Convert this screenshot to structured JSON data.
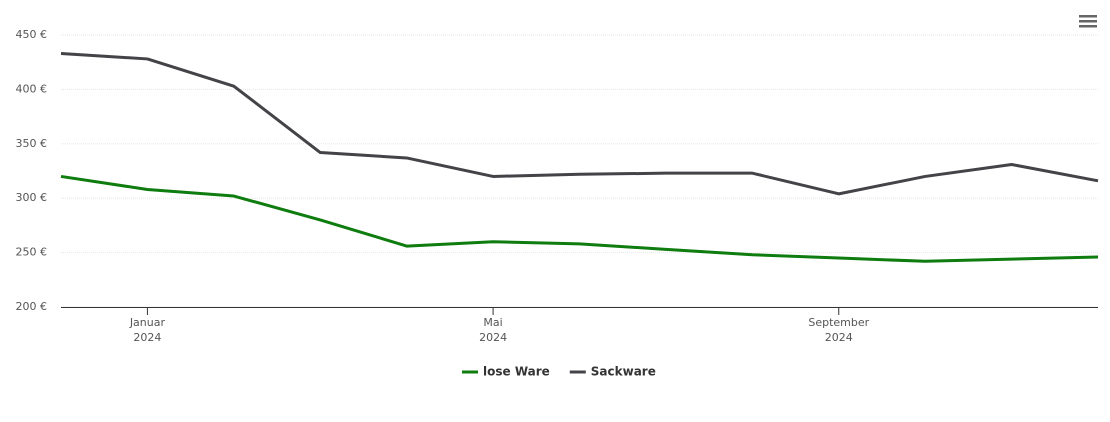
{
  "chart_data": {
    "type": "line",
    "x": [
      "2023-12",
      "2024-01",
      "2024-02",
      "2024-03",
      "2024-04",
      "2024-05",
      "2024-06",
      "2024-07",
      "2024-08",
      "2024-09",
      "2024-10",
      "2024-11",
      "2024-12"
    ],
    "series": [
      {
        "name": "lose Ware",
        "color": "#0e7c0e",
        "values": [
          320,
          308,
          302,
          280,
          256,
          260,
          258,
          253,
          248,
          245,
          242,
          244,
          246
        ]
      },
      {
        "name": "Sackware",
        "color": "#434348",
        "values": [
          433,
          428,
          403,
          342,
          337,
          320,
          322,
          323,
          323,
          304,
          320,
          331,
          316
        ]
      }
    ],
    "xlim": [
      "2023-12",
      "2024-12"
    ],
    "xticks": [
      {
        "value": "2024-01",
        "label": "Januar 2024"
      },
      {
        "value": "2024-05",
        "label": "Mai 2024"
      },
      {
        "value": "2024-09",
        "label": "September 2024"
      }
    ],
    "ylim": [
      200,
      450
    ],
    "yticks": [
      {
        "value": 200,
        "label": "200 €"
      },
      {
        "value": 250,
        "label": "250 €"
      },
      {
        "value": 300,
        "label": "300 €"
      },
      {
        "value": 350,
        "label": "350 €"
      },
      {
        "value": 400,
        "label": "400 €"
      },
      {
        "value": 450,
        "label": "450 €"
      }
    ],
    "grid": true,
    "legend": "bottom"
  }
}
